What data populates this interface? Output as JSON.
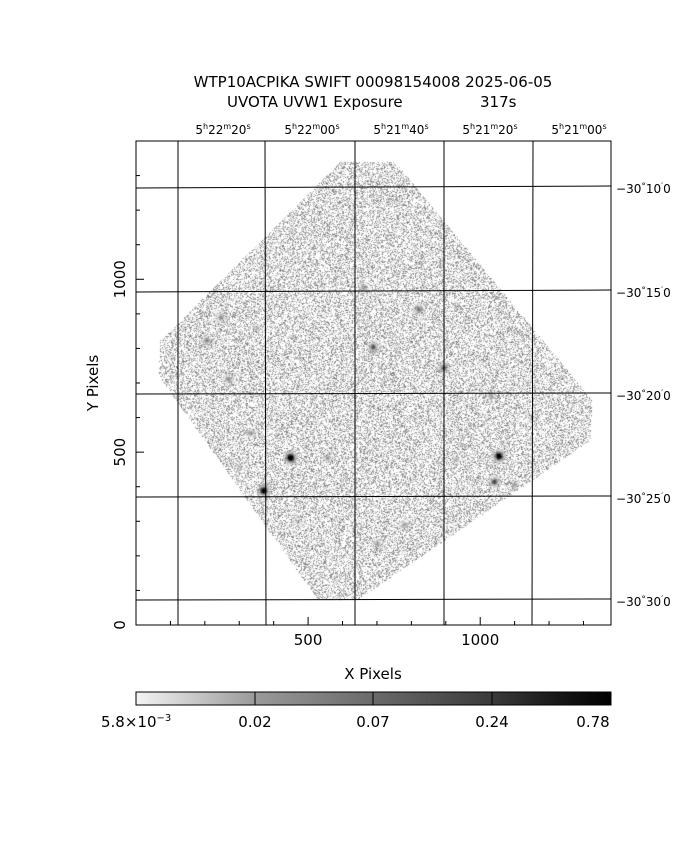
{
  "header": {
    "title_line1": "WTP10ACPIKA SWIFT 00098154008 2025-06-05",
    "title_line2_left": "UVOTA UVW1 Exposure",
    "title_line2_right": "317s"
  },
  "axes": {
    "xlabel": "X Pixels",
    "ylabel": "Y Pixels",
    "x_ticks": [
      {
        "value": 500,
        "label": "500"
      },
      {
        "value": 1000,
        "label": "1000"
      }
    ],
    "y_ticks": [
      {
        "value": 0,
        "label": "0"
      },
      {
        "value": 500,
        "label": "500"
      },
      {
        "value": 1000,
        "label": "1000"
      }
    ],
    "x_range": [
      0,
      1380
    ],
    "y_range": [
      0,
      1400
    ],
    "ra_labels": [
      {
        "h": "5",
        "m": "22",
        "s": "20"
      },
      {
        "h": "5",
        "m": "22",
        "s": "00"
      },
      {
        "h": "5",
        "m": "21",
        "s": "40"
      },
      {
        "h": "5",
        "m": "21",
        "s": "20"
      },
      {
        "h": "5",
        "m": "21",
        "s": "00"
      }
    ],
    "dec_labels": [
      {
        "d": "-30",
        "m": "10",
        "s": "0"
      },
      {
        "d": "-30",
        "m": "15",
        "s": "0"
      },
      {
        "d": "-30",
        "m": "20",
        "s": "0"
      },
      {
        "d": "-30",
        "m": "25",
        "s": "0"
      },
      {
        "d": "-30",
        "m": "30",
        "s": "0"
      }
    ]
  },
  "colorbar": {
    "labels": [
      {
        "mantissa": "5.8",
        "times": "×10",
        "exponent": "−3"
      },
      {
        "text": "0.02"
      },
      {
        "text": "0.07"
      },
      {
        "text": "0.24"
      },
      {
        "text": "0.78"
      }
    ]
  },
  "image": {
    "sources": [
      {
        "x": 448,
        "y": 485,
        "strength": 1.0
      },
      {
        "x": 370,
        "y": 390,
        "strength": 0.9
      },
      {
        "x": 1053,
        "y": 490,
        "strength": 0.95
      },
      {
        "x": 1040,
        "y": 415,
        "strength": 0.6
      },
      {
        "x": 688,
        "y": 805,
        "strength": 0.55
      },
      {
        "x": 893,
        "y": 745,
        "strength": 0.55
      },
      {
        "x": 820,
        "y": 915,
        "strength": 0.45
      },
      {
        "x": 205,
        "y": 825,
        "strength": 0.4
      },
      {
        "x": 245,
        "y": 890,
        "strength": 0.35
      },
      {
        "x": 268,
        "y": 712,
        "strength": 0.35
      },
      {
        "x": 332,
        "y": 556,
        "strength": 0.3
      },
      {
        "x": 555,
        "y": 485,
        "strength": 0.3
      },
      {
        "x": 660,
        "y": 975,
        "strength": 0.3
      },
      {
        "x": 700,
        "y": 235,
        "strength": 0.3
      },
      {
        "x": 1098,
        "y": 407,
        "strength": 0.3
      },
      {
        "x": 1030,
        "y": 665,
        "strength": 0.3
      },
      {
        "x": 930,
        "y": 480,
        "strength": 0.25
      },
      {
        "x": 265,
        "y": 1080,
        "strength": 0.3
      },
      {
        "x": 780,
        "y": 290,
        "strength": 0.25
      },
      {
        "x": 350,
        "y": 860,
        "strength": 0.2
      },
      {
        "x": 470,
        "y": 300,
        "strength": 0.2
      },
      {
        "x": 300,
        "y": 460,
        "strength": 0.2
      },
      {
        "x": 1150,
        "y": 600,
        "strength": 0.2
      }
    ]
  }
}
